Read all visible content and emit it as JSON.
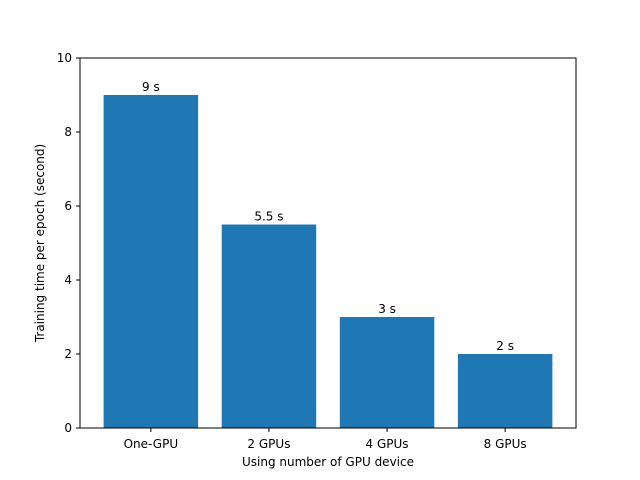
{
  "chart_data": {
    "type": "bar",
    "categories": [
      "One-GPU",
      "2 GPUs",
      "4 GPUs",
      "8 GPUs"
    ],
    "values": [
      9,
      5.5,
      3,
      2
    ],
    "data_labels": [
      "9 s",
      "5.5 s",
      "3 s",
      "2 s"
    ],
    "xlabel": "Using number of GPU device",
    "ylabel": "Training time per epoch (second)",
    "ylim": [
      0,
      10
    ],
    "yticks": [
      0,
      2,
      4,
      6,
      8,
      10
    ],
    "grid": false,
    "legend": null,
    "bar_color": "#1f77b4"
  }
}
